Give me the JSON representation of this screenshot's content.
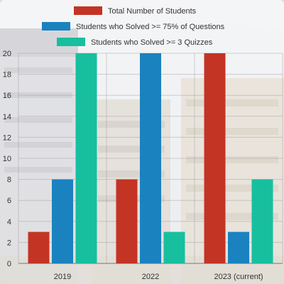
{
  "chart_data": {
    "type": "bar",
    "categories": [
      "2019",
      "2022",
      "2023 (current)"
    ],
    "series": [
      {
        "name": "Total Number of Students",
        "values": [
          3,
          8,
          20
        ]
      },
      {
        "name": "Students who Solved >= 75% of Questions",
        "values": [
          8,
          20,
          3
        ]
      },
      {
        "name": "Students who Solved >= 3 Quizzes",
        "values": [
          20,
          3,
          8
        ]
      }
    ],
    "colors": [
      "#c33425",
      "#1a82bf",
      "#17bf9f"
    ],
    "ylim": [
      0,
      20
    ],
    "yticks": [
      0,
      2,
      4,
      6,
      8,
      10,
      12,
      14,
      16,
      18,
      20
    ],
    "grid": true,
    "legend_position": "top",
    "title": "",
    "xlabel": "",
    "ylabel": "",
    "background": "faded campus building photo"
  }
}
